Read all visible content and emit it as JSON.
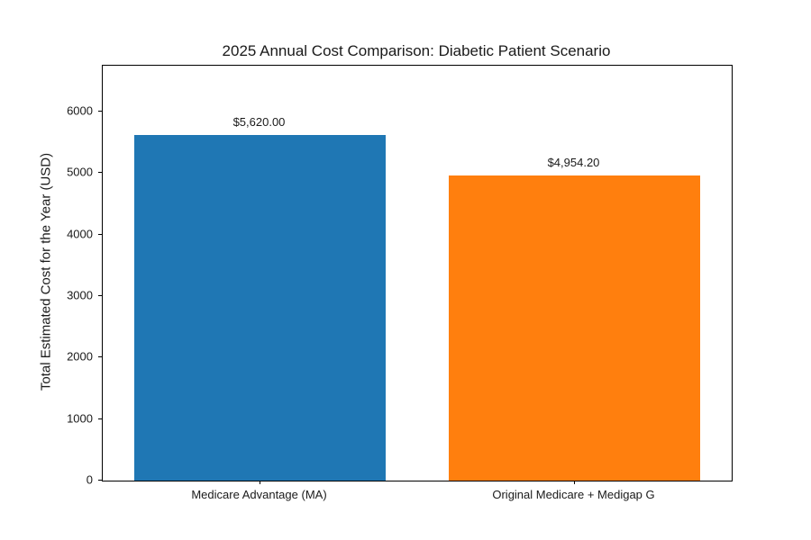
{
  "chart_data": {
    "type": "bar",
    "title": "2025 Annual Cost Comparison: Diabetic Patient Scenario",
    "xlabel": "",
    "ylabel": "Total Estimated Cost for the Year (USD)",
    "categories": [
      "Medicare Advantage (MA)",
      "Original Medicare + Medigap G"
    ],
    "values": [
      5620.0,
      4954.2
    ],
    "value_labels": [
      "$5,620.00",
      "$4,954.20"
    ],
    "bar_colors": [
      "#1f77b4",
      "#ff7f0e"
    ],
    "yticks": [
      0,
      1000,
      2000,
      3000,
      4000,
      5000,
      6000
    ],
    "ylim": [
      0,
      6744
    ],
    "grid": false,
    "legend": null,
    "background_color": "#ffffff",
    "axis_color": "#000000",
    "text_color": "#1a1a1a"
  }
}
